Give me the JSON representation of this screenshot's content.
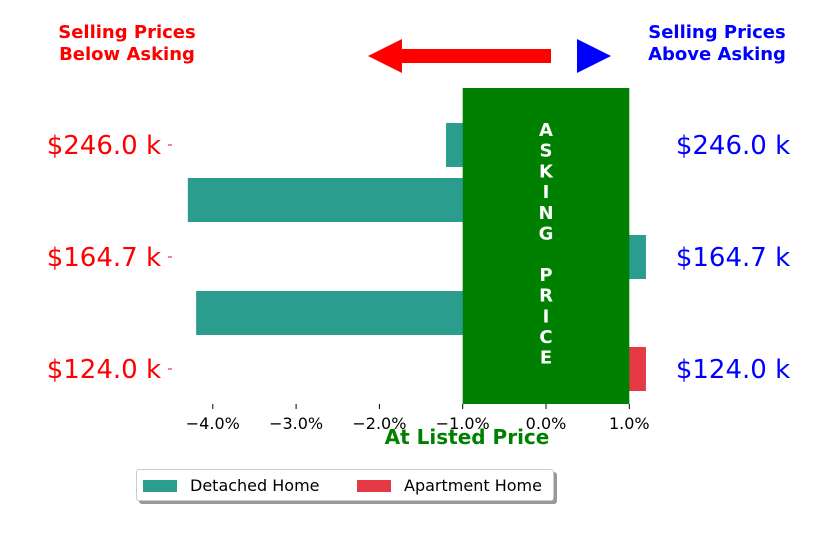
{
  "chart_data": {
    "type": "bar",
    "orientation": "horizontal",
    "categories": [
      "$246.0 k",
      "",
      "$164.7 k",
      "",
      "$124.0 k"
    ],
    "left_tick_labels": [
      "$246.0 k",
      "$164.7 k",
      "$124.0 k"
    ],
    "right_tick_labels": [
      "$246.0 k",
      "$164.7 k",
      "$124.0 k"
    ],
    "series": [
      {
        "name": "Detached Home",
        "color": "#2a9d8f",
        "values": [
          -1.2,
          -4.3,
          1.2,
          -4.2,
          null
        ]
      },
      {
        "name": "Apartment Home",
        "color": "#e63946",
        "values": [
          null,
          null,
          null,
          null,
          1.2
        ]
      }
    ],
    "asking_price_band": {
      "xrange": [
        -1.0,
        1.0
      ],
      "color": "#008000",
      "text": [
        "A",
        "S",
        "K",
        "I",
        "N",
        "G",
        "",
        "P",
        "R",
        "I",
        "C",
        "E"
      ]
    },
    "xlim": [
      -4.5,
      1.5
    ],
    "xticks": [
      -4.0,
      -3.0,
      -2.0,
      -1.0,
      0.0,
      1.0
    ],
    "xtick_labels": [
      "−4.0%",
      "−3.0%",
      "−2.0%",
      "−1.0%",
      "0.0%",
      "1.0%"
    ],
    "xlabel": "At Listed Price",
    "xlabel_color": "#008000",
    "left_header": [
      "Selling Prices",
      "Below Asking"
    ],
    "left_color": "#ff0000",
    "right_header": [
      "Selling Prices",
      "Above Asking"
    ],
    "right_color": "#0000ff",
    "legend": {
      "position": "bottom-center",
      "entries": [
        "Detached Home",
        "Apartment Home"
      ]
    },
    "grid": false
  }
}
